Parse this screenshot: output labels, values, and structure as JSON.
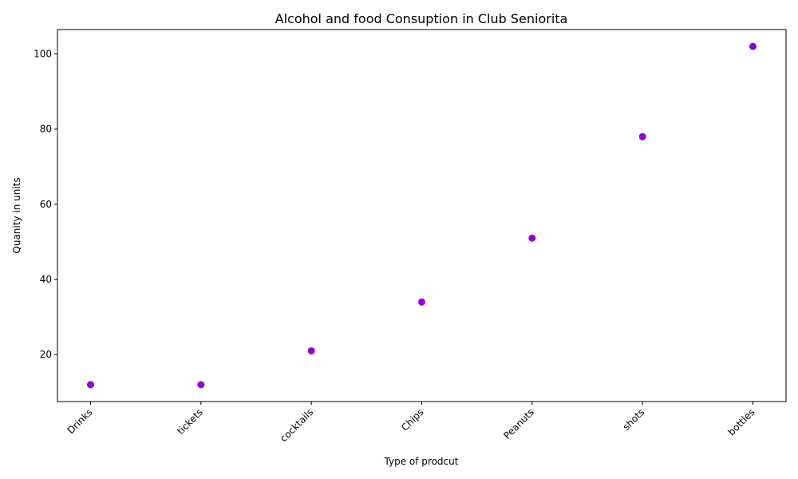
{
  "chart_data": {
    "type": "scatter",
    "title": "Alcohol and food Consuption in Club Seniorita",
    "xlabel": "Type of prodcut",
    "ylabel": "Quanity in units",
    "categories": [
      "Drinks",
      "tickets",
      "cocktails",
      "Chips",
      "Peanuts",
      "shots",
      "bottles"
    ],
    "values": [
      12,
      12,
      21,
      34,
      51,
      78,
      102
    ],
    "ylim": [
      7.5,
      106.5
    ],
    "yticks": [
      20,
      40,
      60,
      80,
      100
    ],
    "marker_color": "#9400d3",
    "grid": false,
    "legend": "none"
  }
}
